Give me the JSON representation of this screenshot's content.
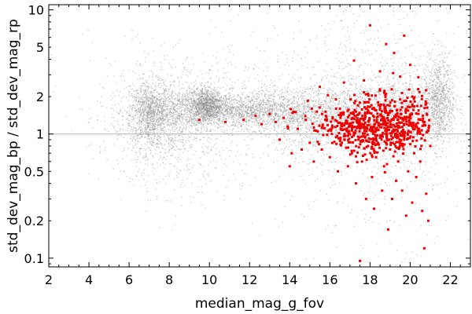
{
  "chart_data": {
    "type": "scatter",
    "title": "",
    "xlabel": "median_mag_g_fov",
    "ylabel": "std_dev_mag_bp / std_dev_mag_rp",
    "xlim": [
      2,
      23
    ],
    "ylim": [
      0.085,
      11
    ],
    "yscale": "log",
    "xticks": [
      "2",
      "4",
      "6",
      "8",
      "10",
      "12",
      "14",
      "16",
      "18",
      "20",
      "22"
    ],
    "yticks": [
      {
        "value": 0.1,
        "label": "0.1"
      },
      {
        "value": 0.2,
        "label": "0.2"
      },
      {
        "value": 0.5,
        "label": "0.5"
      },
      {
        "value": 1,
        "label": "1"
      },
      {
        "value": 2,
        "label": "2"
      },
      {
        "value": 5,
        "label": "5"
      },
      {
        "value": 10,
        "label": "10"
      }
    ],
    "reference_line": {
      "y": 1
    },
    "grid": false,
    "legend": "none",
    "colors": {
      "background": "#808080",
      "highlight": "#ee0000",
      "reference": "#b4b4b4"
    },
    "series": [
      {
        "role": "background",
        "color": "#808080",
        "density": [
          {
            "x": 7.0,
            "y": 1.45,
            "sx": 0.5,
            "sy": 0.13
          },
          {
            "x": 8.8,
            "y": 1.55,
            "sx": 1.4,
            "sy": 0.09
          },
          {
            "x": 9.8,
            "y": 1.75,
            "sx": 0.4,
            "sy": 0.07
          },
          {
            "x": 11.6,
            "y": 1.55,
            "sx": 1.2,
            "sy": 0.07
          },
          {
            "x": 14.0,
            "y": 1.5,
            "sx": 1.4,
            "sy": 0.09
          },
          {
            "x": 16.8,
            "y": 1.45,
            "sx": 1.6,
            "sy": 0.12
          },
          {
            "x": 19.3,
            "y": 1.4,
            "sx": 1.1,
            "sy": 0.18
          },
          {
            "x": 21.4,
            "y": 1.9,
            "sx": 0.4,
            "sy": 0.18
          },
          {
            "x": 13.0,
            "y": 1.5,
            "sx": 4.5,
            "sy": 0.3
          },
          {
            "x": 18.5,
            "y": 1.5,
            "sx": 2.5,
            "sy": 0.5
          },
          {
            "x": 8.0,
            "y": 1.2,
            "sx": 1.5,
            "sy": 0.25
          }
        ]
      },
      {
        "role": "highlight",
        "color": "#ee0000",
        "points": [
          [
            9.5,
            1.3
          ],
          [
            10.8,
            1.25
          ],
          [
            11.7,
            1.3
          ],
          [
            12.3,
            1.4
          ],
          [
            12.6,
            1.2
          ],
          [
            13.0,
            1.45
          ],
          [
            13.3,
            1.25
          ],
          [
            13.5,
            0.9
          ],
          [
            13.7,
            1.35
          ],
          [
            13.9,
            1.15
          ],
          [
            14.0,
            0.55
          ],
          [
            14.1,
            0.7
          ],
          [
            14.3,
            1.5
          ],
          [
            14.4,
            1.1
          ],
          [
            14.6,
            0.75
          ],
          [
            14.8,
            1.3
          ],
          [
            15.0,
            0.85
          ],
          [
            15.1,
            1.6
          ],
          [
            15.2,
            0.6
          ],
          [
            15.4,
            1.05
          ],
          [
            15.5,
            2.4
          ],
          [
            15.6,
            0.75
          ],
          [
            15.8,
            1.4
          ],
          [
            16.0,
            0.65
          ],
          [
            16.1,
            1.0
          ],
          [
            16.3,
            1.9
          ],
          [
            16.4,
            0.5
          ],
          [
            16.6,
            0.85
          ],
          [
            16.7,
            2.6
          ],
          [
            16.9,
            0.55
          ],
          [
            17.0,
            1.2
          ],
          [
            17.1,
            0.7
          ],
          [
            17.3,
            0.4
          ],
          [
            17.4,
            0.95
          ],
          [
            17.5,
            0.095
          ],
          [
            17.6,
            0.6
          ],
          [
            17.8,
            0.3
          ],
          [
            17.9,
            0.8
          ],
          [
            18.0,
            7.5
          ],
          [
            18.1,
            0.45
          ],
          [
            18.2,
            0.25
          ],
          [
            18.3,
            0.65
          ],
          [
            18.4,
            1.8
          ],
          [
            18.5,
            3.2
          ],
          [
            18.6,
            0.35
          ],
          [
            18.7,
            0.55
          ],
          [
            18.8,
            5.3
          ],
          [
            18.9,
            0.17
          ],
          [
            19.0,
            0.75
          ],
          [
            19.1,
            0.3
          ],
          [
            19.2,
            4.5
          ],
          [
            19.3,
            0.42
          ],
          [
            19.4,
            0.6
          ],
          [
            19.5,
            2.9
          ],
          [
            19.6,
            0.35
          ],
          [
            19.7,
            6.2
          ],
          [
            19.8,
            0.22
          ],
          [
            19.9,
            0.5
          ],
          [
            20.0,
            3.6
          ],
          [
            20.1,
            0.28
          ],
          [
            20.2,
            0.7
          ],
          [
            20.3,
            0.45
          ],
          [
            20.4,
            2.3
          ],
          [
            20.5,
            0.6
          ],
          [
            20.6,
            0.24
          ],
          [
            20.7,
            0.12
          ],
          [
            20.8,
            0.33
          ],
          [
            20.9,
            0.2
          ],
          [
            21.0,
            0.8
          ],
          [
            20.5,
            1.3
          ],
          [
            17.2,
            3.9
          ],
          [
            18.8,
            2.1
          ],
          [
            19.5,
            1.9
          ],
          [
            16.5,
            1.6
          ],
          [
            15.9,
            2.05
          ],
          [
            17.7,
            2.7
          ],
          [
            20.1,
            2.0
          ],
          [
            14.9,
            1.85
          ]
        ],
        "cluster": {
          "x_center": 18.6,
          "x_spread": 1.5,
          "y_center": 1.15,
          "y_spread_log10": 0.12,
          "x_range": [
            12.0,
            20.95
          ]
        }
      }
    ]
  }
}
